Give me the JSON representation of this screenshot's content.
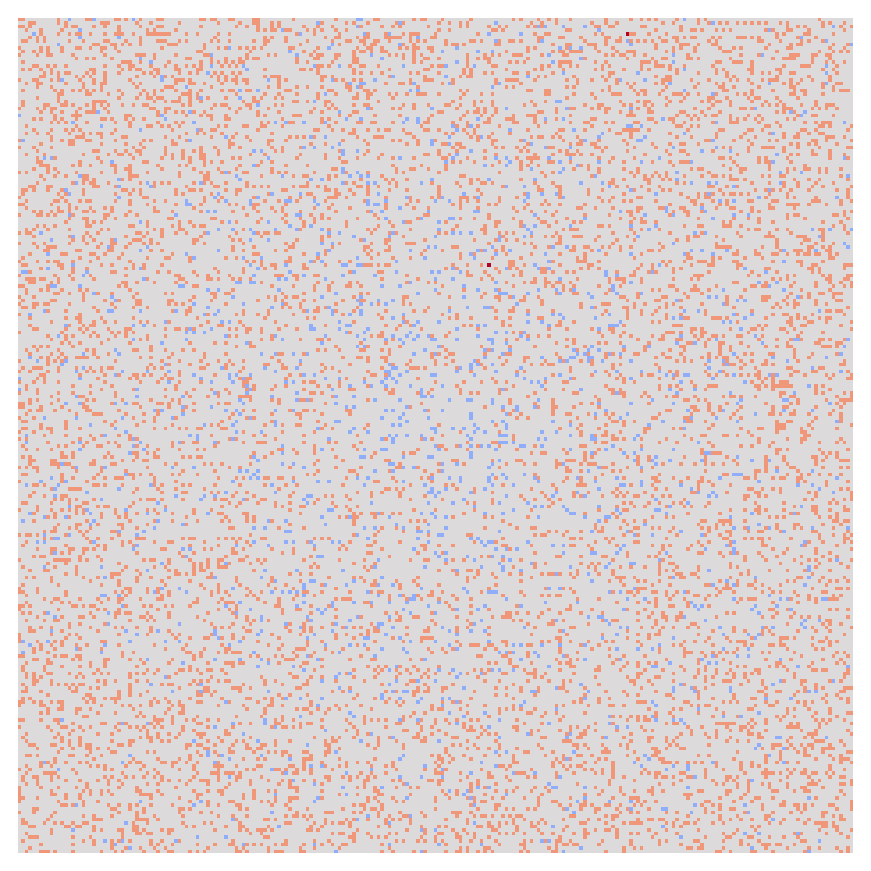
{
  "chart_data": {
    "type": "heatmap",
    "title": "",
    "xlabel": "",
    "ylabel": "",
    "grid": false,
    "legend": "none",
    "colorbar": false,
    "grid_size": [
      235,
      235
    ],
    "value_range": [
      -1,
      2
    ],
    "colors": {
      "background": "#dcdada",
      "negative": "#8fadf9",
      "positive": "#f0977a",
      "strong_positive": "#b40426"
    },
    "cell_fill_fraction": {
      "positive_edge": 0.2,
      "positive_center": 0.07,
      "negative_center": 0.075,
      "negative_edge": 0.01
    },
    "strong_positive_cells": [
      {
        "row": 4,
        "col": 171,
        "value": 2
      },
      {
        "row": 69,
        "col": 132,
        "value": 2
      }
    ],
    "random_seed": 1337
  }
}
